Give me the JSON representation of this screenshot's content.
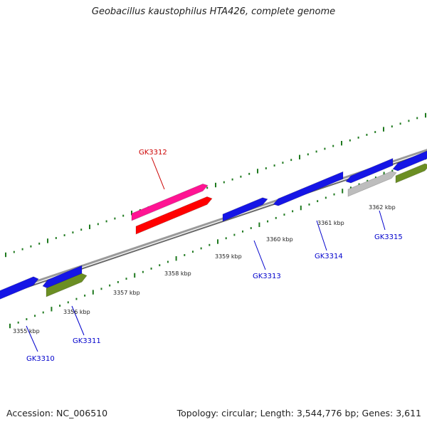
{
  "title": "Geobacillus kaustophilus HTA426, complete genome",
  "footer": {
    "accession": "Accession: NC_006510",
    "summary": "Topology: circular; Length: 3,544,776 bp; Genes: 3,611"
  },
  "colors": {
    "backbone": "#8c8c8c",
    "tick": "#1f7a1f",
    "gene_label": "#0000cc",
    "highlight_label": "#cc0000",
    "gene_forward": "#1515e6",
    "gene_other": "#6b8e23",
    "gene_gray": "#bdbdbd",
    "gene_magenta": "#ff1493",
    "gene_red": "#ff0000"
  },
  "ruler": {
    "unit": "kbp",
    "labels": [
      "3355 kbp",
      "3356 kbp",
      "3357 kbp",
      "3358 kbp",
      "3359 kbp",
      "3360 kbp",
      "3361 kbp",
      "3362 kbp"
    ]
  },
  "genes": [
    {
      "id": "GK3310",
      "label": "GK3310",
      "color": "gene_forward"
    },
    {
      "id": "GK3311",
      "label": "GK3311",
      "color": "gene_other"
    },
    {
      "id": "GK3312",
      "label": "GK3312",
      "color": "gene_magenta",
      "highlight": true
    },
    {
      "id": "GK3313",
      "label": "GK3313",
      "color": "gene_forward"
    },
    {
      "id": "GK3314",
      "label": "GK3314",
      "color": "gene_forward"
    },
    {
      "id": "GK3315",
      "label": "GK3315",
      "color": "gene_gray"
    }
  ]
}
